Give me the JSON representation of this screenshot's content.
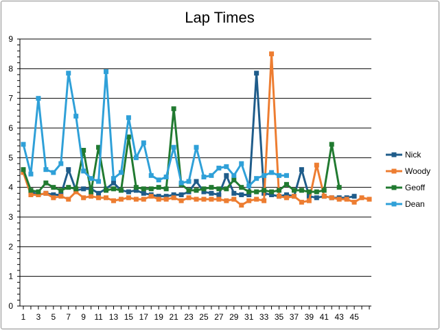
{
  "chart_data": {
    "type": "line",
    "title": "Lap Times",
    "xlabel": "",
    "ylabel": "",
    "ylim": [
      0,
      9
    ],
    "yticks": [
      0,
      1,
      2,
      3,
      4,
      5,
      6,
      7,
      8,
      9
    ],
    "xlim": [
      1,
      47
    ],
    "xticks": [
      1,
      3,
      5,
      7,
      9,
      11,
      13,
      15,
      17,
      19,
      21,
      23,
      25,
      27,
      29,
      31,
      33,
      35,
      37,
      39,
      41,
      43,
      45
    ],
    "grid": "horizontal",
    "legend_position": "right",
    "series": [
      {
        "name": "Nick",
        "color": "#1f5c8a",
        "values": [
          4.55,
          3.85,
          3.75,
          3.8,
          3.75,
          3.75,
          4.6,
          3.9,
          3.95,
          3.95,
          3.8,
          3.95,
          4.15,
          3.9,
          3.85,
          3.9,
          3.8,
          3.75,
          3.7,
          3.7,
          3.75,
          3.75,
          3.85,
          4.2,
          3.85,
          3.8,
          3.75,
          4.4,
          3.8,
          3.75,
          3.75,
          7.85,
          3.8,
          3.75,
          3.7,
          3.75,
          3.7,
          4.6,
          3.7,
          3.65,
          3.7,
          3.65,
          3.65,
          3.65,
          3.7
        ]
      },
      {
        "name": "Woody",
        "color": "#ed7d31",
        "values": [
          4.5,
          3.75,
          3.75,
          3.8,
          3.65,
          3.7,
          3.6,
          3.85,
          3.65,
          3.7,
          3.65,
          3.65,
          3.55,
          3.6,
          3.65,
          3.6,
          3.6,
          3.7,
          3.6,
          3.6,
          3.65,
          3.55,
          3.65,
          3.6,
          3.6,
          3.6,
          3.6,
          3.55,
          3.6,
          3.4,
          3.55,
          3.6,
          3.55,
          8.5,
          3.7,
          3.65,
          3.7,
          3.5,
          3.55,
          4.75,
          3.7,
          3.65,
          3.6,
          3.6,
          3.5,
          3.65,
          3.6
        ]
      },
      {
        "name": "Geoff",
        "color": "#217a30",
        "values": [
          4.6,
          3.9,
          3.85,
          4.15,
          4.0,
          3.9,
          4.0,
          3.95,
          5.25,
          3.85,
          5.35,
          3.9,
          3.95,
          3.9,
          5.7,
          4.0,
          3.95,
          3.95,
          4.0,
          3.95,
          6.65,
          4.1,
          3.9,
          3.9,
          3.95,
          4.0,
          3.95,
          3.95,
          4.25,
          4.0,
          3.85,
          3.85,
          3.9,
          3.85,
          3.9,
          4.1,
          3.9,
          3.9,
          3.85,
          3.85,
          3.9,
          5.45,
          4.0
        ]
      },
      {
        "name": "Dean",
        "color": "#2fa0d8",
        "values": [
          5.45,
          4.45,
          7.0,
          4.6,
          4.5,
          4.8,
          7.85,
          6.4,
          4.55,
          4.3,
          4.2,
          7.9,
          4.3,
          4.5,
          6.35,
          5.0,
          5.5,
          4.4,
          4.25,
          4.35,
          5.35,
          4.15,
          4.2,
          5.35,
          4.35,
          4.4,
          4.65,
          4.7,
          4.4,
          4.8,
          4.05,
          4.3,
          4.4,
          4.5,
          4.4,
          4.4
        ]
      }
    ]
  }
}
